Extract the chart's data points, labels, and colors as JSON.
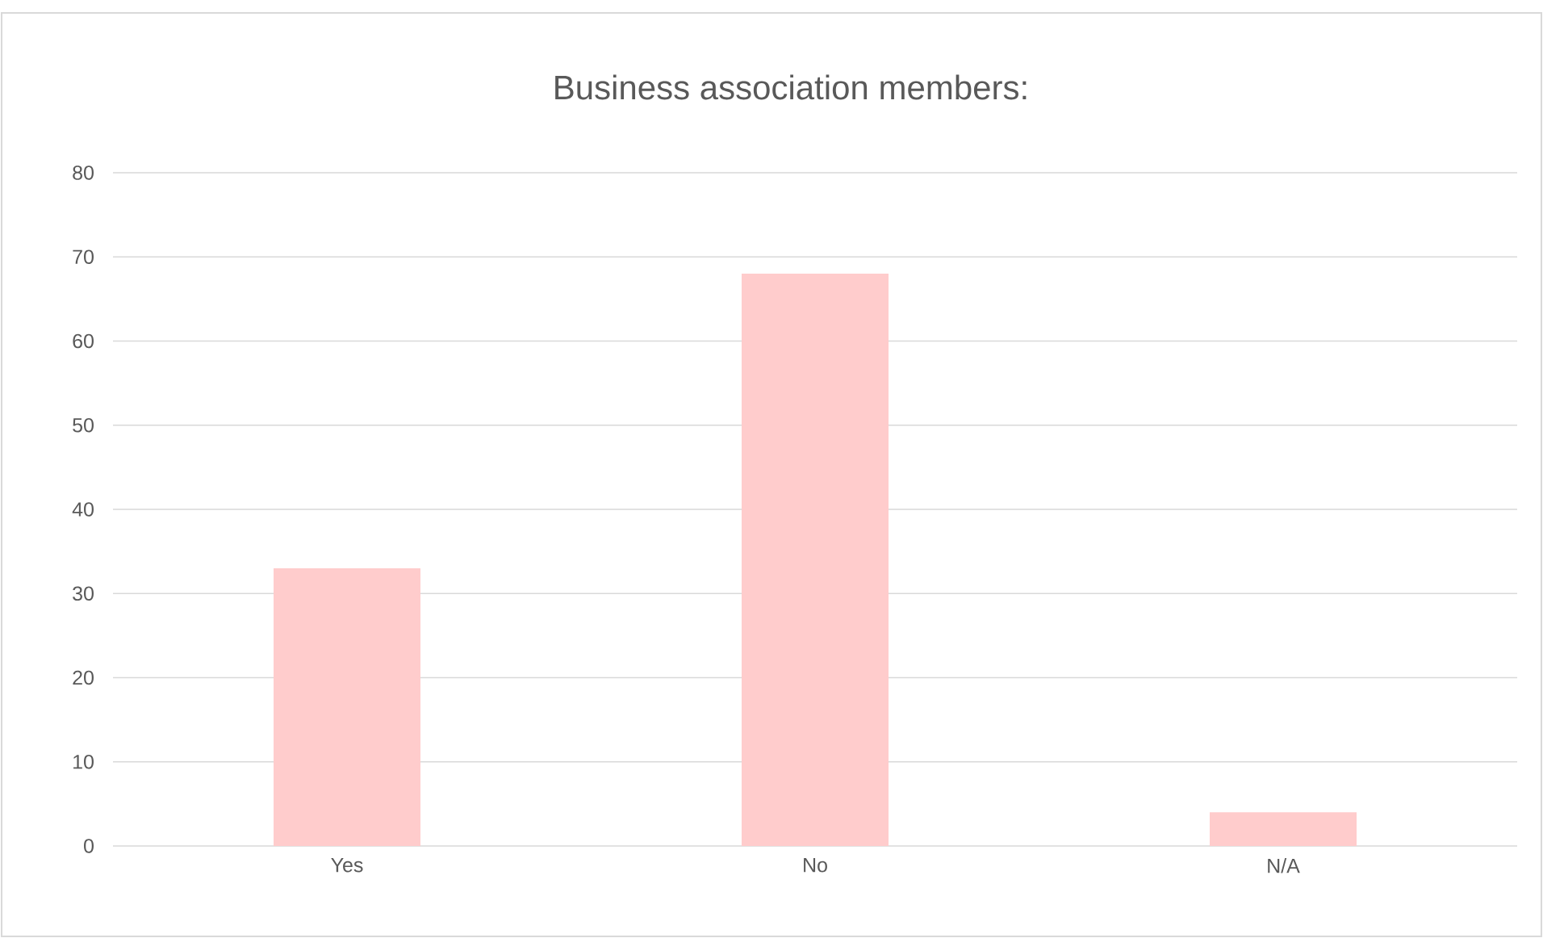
{
  "chart_data": {
    "type": "bar",
    "title": "Business association members:",
    "categories": [
      "Yes",
      "No",
      "N/A"
    ],
    "values": [
      33,
      68,
      4
    ],
    "color": "#ffcccc",
    "ylim": [
      0,
      80
    ],
    "yticks": [
      0,
      10,
      20,
      30,
      40,
      50,
      60,
      70,
      80
    ],
    "grid": "y"
  }
}
